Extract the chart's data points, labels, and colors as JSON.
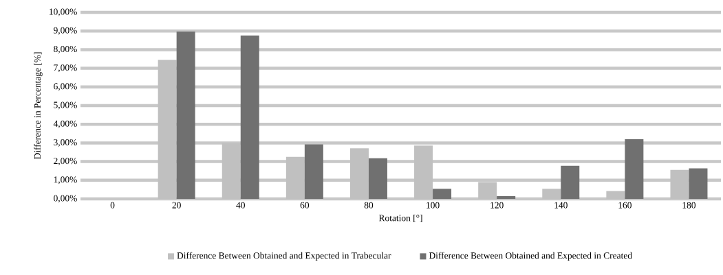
{
  "chart_data": {
    "type": "bar",
    "xlabel": "Rotation [°]",
    "ylabel": "Difference in Percentage [%]",
    "categories": [
      "0",
      "20",
      "40",
      "60",
      "80",
      "100",
      "120",
      "140",
      "160",
      "180"
    ],
    "series": [
      {
        "name": "Difference Between Obtained and Expected in Trabecular",
        "color": "#c0c0c0",
        "values": [
          0,
          7.45,
          3.0,
          2.25,
          2.71,
          2.86,
          0.9,
          0.54,
          0.42,
          1.55
        ]
      },
      {
        "name": "Difference Between Obtained and Expected in Created",
        "color": "#707070",
        "values": [
          0,
          8.97,
          8.76,
          2.92,
          2.18,
          0.54,
          0.15,
          1.77,
          3.2,
          1.64
        ]
      }
    ],
    "ylim": [
      0,
      10
    ],
    "yticks": [
      {
        "value": 0,
        "label": "0,00%"
      },
      {
        "value": 1,
        "label": "1,00%"
      },
      {
        "value": 2,
        "label": "2,00%"
      },
      {
        "value": 3,
        "label": "3,00%"
      },
      {
        "value": 4,
        "label": "4,00%"
      },
      {
        "value": 5,
        "label": "5,00%"
      },
      {
        "value": 6,
        "label": "6,00%"
      },
      {
        "value": 7,
        "label": "7,00%"
      },
      {
        "value": 8,
        "label": "8,00%"
      },
      {
        "value": 9,
        "label": "9,00%"
      },
      {
        "value": 10,
        "label": "10,00%"
      }
    ],
    "grid": "y",
    "legend": "bottom"
  }
}
